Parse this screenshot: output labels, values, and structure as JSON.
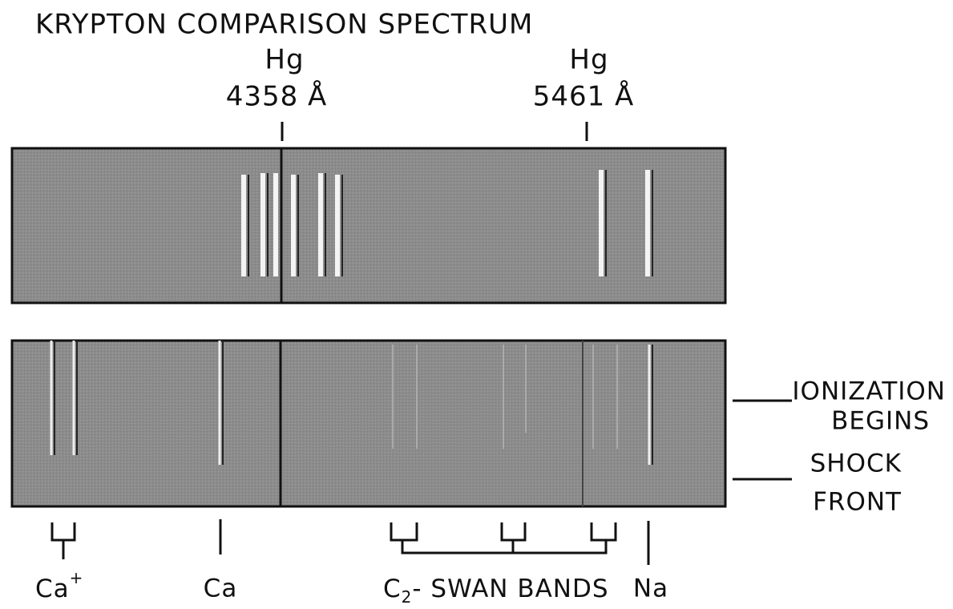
{
  "title": "KRYPTON COMPARISON SPECTRUM",
  "reference_lines": [
    {
      "element": "Hg",
      "wavelength": "4358 Å"
    },
    {
      "element": "Hg",
      "wavelength": "5461 Å"
    }
  ],
  "side_labels": [
    {
      "line1": "IONIZATION",
      "line2": "BEGINS"
    },
    {
      "line1": "SHOCK",
      "line2": "FRONT"
    }
  ],
  "bottom_labels": {
    "ca_ion": {
      "base": "Ca",
      "sup": "+"
    },
    "ca": "Ca",
    "swan": {
      "base": "C",
      "sub": "2",
      "rest": "- SWAN BANDS"
    },
    "na": "Na"
  }
}
